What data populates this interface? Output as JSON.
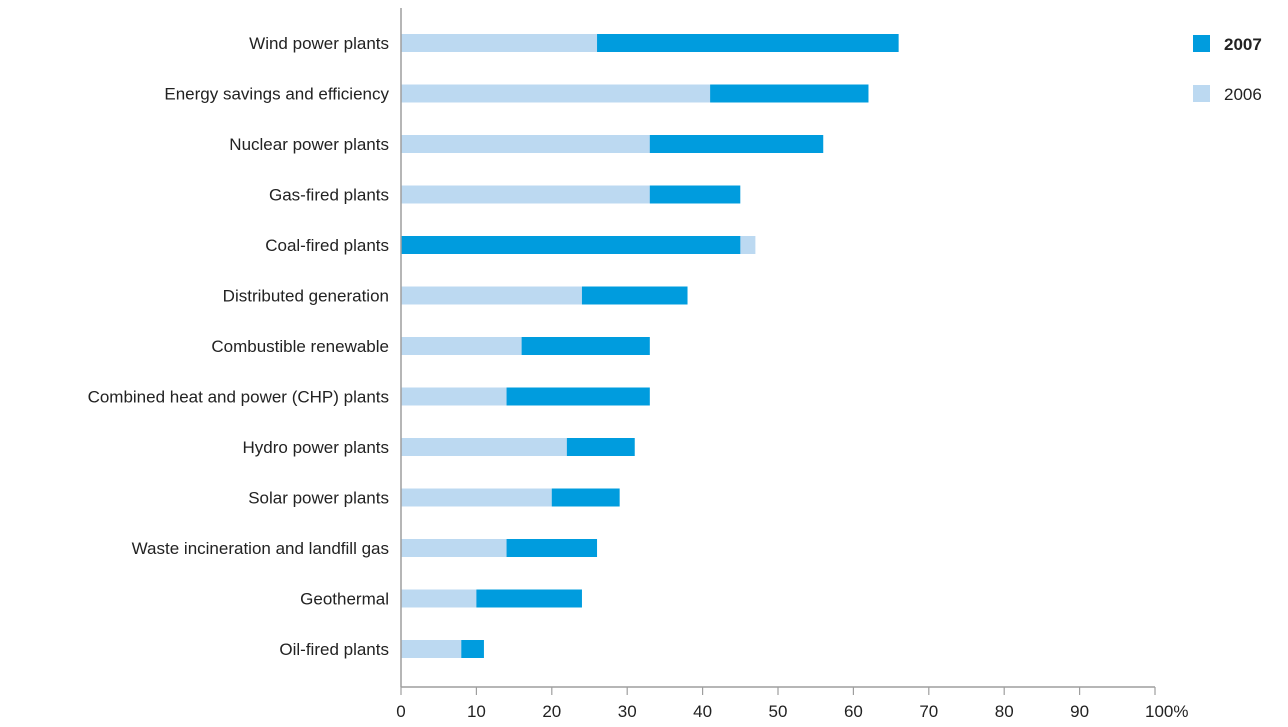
{
  "chart_data": {
    "type": "bar",
    "orientation": "horizontal",
    "stacked": false,
    "categories": [
      "Wind power plants",
      "Energy savings and efficiency",
      "Nuclear power plants",
      "Gas-fired plants",
      "Coal-fired plants",
      "Distributed generation",
      "Combustible renewable",
      "Combined heat and power (CHP) plants",
      "Hydro power plants",
      "Solar power plants",
      "Waste incineration and landfill gas",
      "Geothermal",
      "Oil-fired plants"
    ],
    "series": [
      {
        "name": "2007",
        "values": [
          66,
          62,
          56,
          45,
          45,
          38,
          33,
          33,
          31,
          29,
          26,
          24,
          11
        ]
      },
      {
        "name": "2006",
        "values": [
          26,
          41,
          33,
          33,
          47,
          24,
          16,
          14,
          22,
          20,
          14,
          10,
          8
        ]
      }
    ],
    "xlim": [
      0,
      100
    ],
    "xticks": [
      "0",
      "10",
      "20",
      "30",
      "40",
      "50",
      "60",
      "70",
      "80",
      "90",
      "100%"
    ],
    "grid": false,
    "legend": {
      "position": "top-right",
      "entries": [
        {
          "label": "2007",
          "color": "#009cde",
          "bold": true
        },
        {
          "label": "2006",
          "color": "#bcd9f1",
          "bold": false
        }
      ]
    },
    "colors": {
      "2007": "#009cde",
      "2006": "#bcd9f1"
    }
  }
}
